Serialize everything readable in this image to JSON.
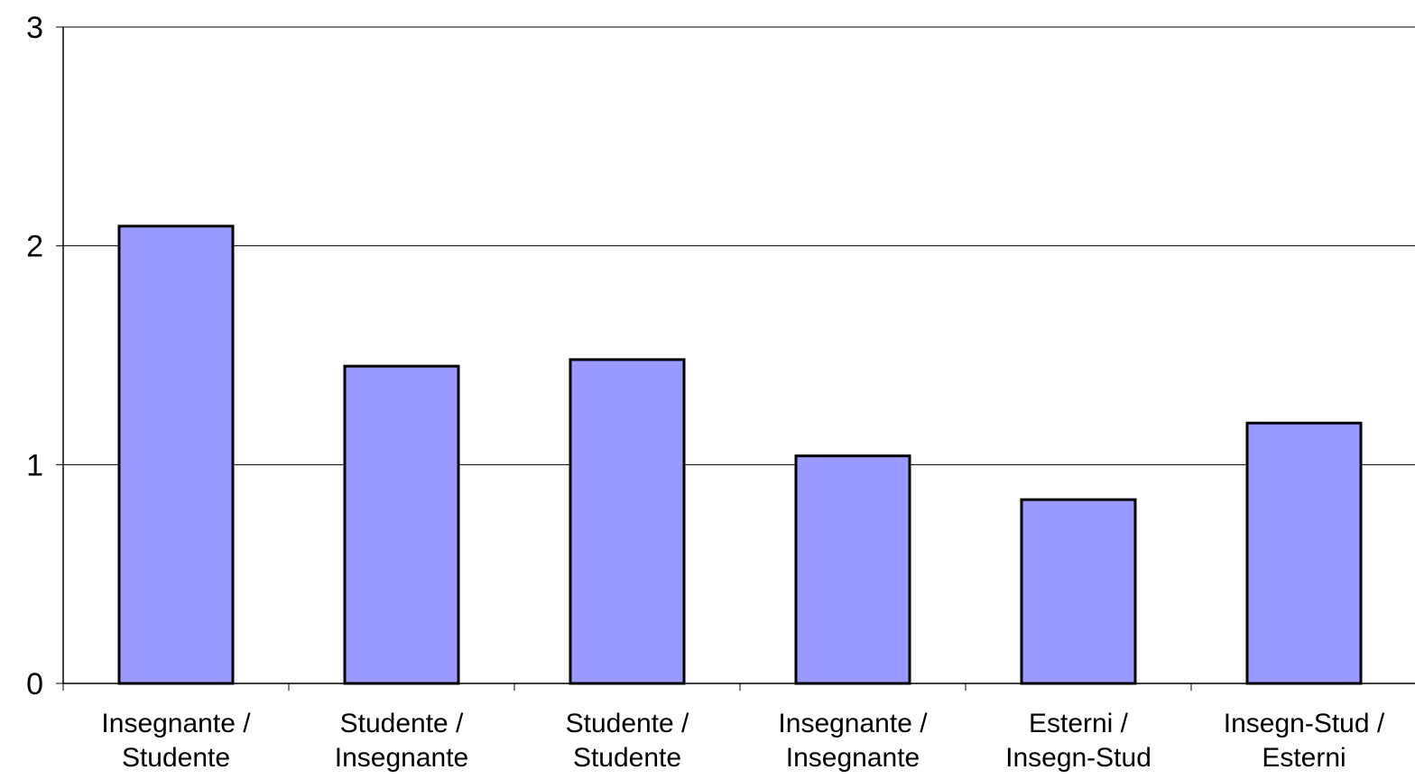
{
  "chart_data": {
    "type": "bar",
    "title": "",
    "xlabel": "",
    "ylabel": "",
    "ylim": [
      0,
      3
    ],
    "yticks": [
      0,
      1,
      2,
      3
    ],
    "grid": true,
    "legend": "none",
    "categories": [
      [
        "Insegnante /",
        "Studente"
      ],
      [
        "Studente /",
        "Insegnante"
      ],
      [
        "Studente /",
        "Studente"
      ],
      [
        "Insegnante /",
        "Insegnante"
      ],
      [
        "Esterni /",
        "Insegn-Stud"
      ],
      [
        "Insegn-Stud /",
        "Esterni"
      ]
    ],
    "values": [
      2.09,
      1.45,
      1.48,
      1.04,
      0.84,
      1.19
    ],
    "colors": {
      "bar_fill": "#9999ff",
      "bar_stroke": "#000000",
      "axis": "#000000",
      "gridline": "#000000"
    }
  }
}
